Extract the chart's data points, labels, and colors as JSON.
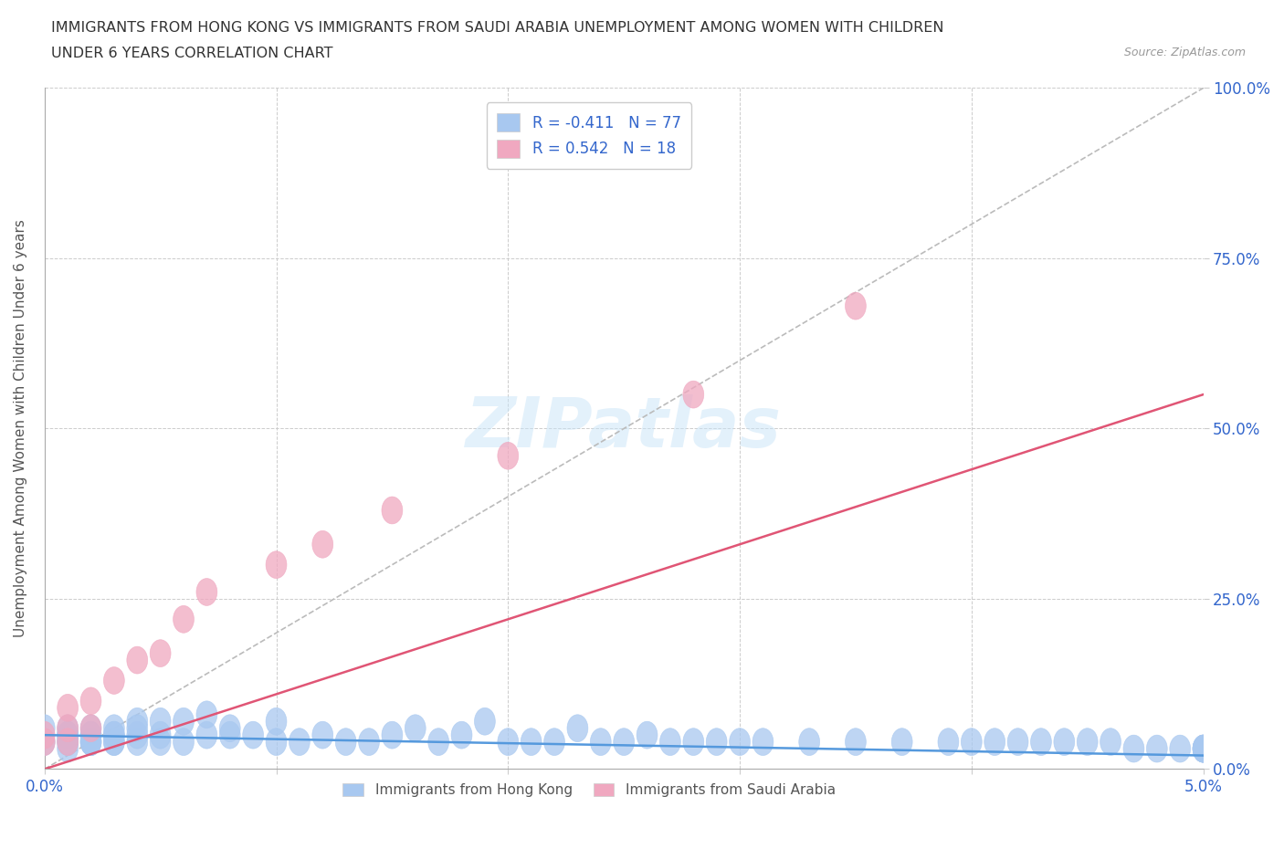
{
  "title_line1": "IMMIGRANTS FROM HONG KONG VS IMMIGRANTS FROM SAUDI ARABIA UNEMPLOYMENT AMONG WOMEN WITH CHILDREN",
  "title_line2": "UNDER 6 YEARS CORRELATION CHART",
  "source_text": "Source: ZipAtlas.com",
  "ylabel": "Unemployment Among Women with Children Under 6 years",
  "watermark": "ZIPatlas",
  "legend_label1": "Immigrants from Hong Kong",
  "legend_label2": "Immigrants from Saudi Arabia",
  "R1": -0.411,
  "N1": 77,
  "R2": 0.542,
  "N2": 18,
  "color1": "#a8c8f0",
  "color2": "#f0a8c0",
  "trendline1_color": "#5599dd",
  "trendline2_color": "#e05575",
  "dashed_line_color": "#bbbbbb",
  "xmin": 0.0,
  "xmax": 0.05,
  "ymin": 0.0,
  "ymax": 1.0,
  "x_ticks": [
    0.0,
    0.01,
    0.02,
    0.03,
    0.04,
    0.05
  ],
  "x_tick_labels": [
    "0.0%",
    "",
    "",
    "",
    "",
    "5.0%"
  ],
  "y_ticks": [
    0.0,
    0.25,
    0.5,
    0.75,
    1.0
  ],
  "y_tick_labels_right": [
    "0.0%",
    "25.0%",
    "50.0%",
    "75.0%",
    "100.0%"
  ],
  "hk_x": [
    0.0,
    0.0,
    0.001,
    0.001,
    0.001,
    0.001,
    0.001,
    0.001,
    0.001,
    0.002,
    0.002,
    0.002,
    0.002,
    0.002,
    0.002,
    0.003,
    0.003,
    0.003,
    0.003,
    0.003,
    0.004,
    0.004,
    0.004,
    0.004,
    0.005,
    0.005,
    0.005,
    0.006,
    0.006,
    0.007,
    0.007,
    0.008,
    0.008,
    0.009,
    0.01,
    0.01,
    0.011,
    0.012,
    0.013,
    0.014,
    0.015,
    0.016,
    0.017,
    0.018,
    0.019,
    0.02,
    0.021,
    0.022,
    0.023,
    0.024,
    0.025,
    0.026,
    0.027,
    0.028,
    0.029,
    0.03,
    0.031,
    0.033,
    0.035,
    0.037,
    0.039,
    0.04,
    0.041,
    0.042,
    0.043,
    0.044,
    0.045,
    0.046,
    0.047,
    0.048,
    0.049,
    0.05,
    0.05,
    0.05,
    0.05,
    0.05,
    0.05
  ],
  "hk_y": [
    0.04,
    0.06,
    0.03,
    0.04,
    0.05,
    0.04,
    0.05,
    0.06,
    0.05,
    0.04,
    0.04,
    0.05,
    0.04,
    0.06,
    0.05,
    0.04,
    0.05,
    0.04,
    0.06,
    0.05,
    0.04,
    0.06,
    0.05,
    0.07,
    0.04,
    0.05,
    0.07,
    0.04,
    0.07,
    0.05,
    0.08,
    0.05,
    0.06,
    0.05,
    0.04,
    0.07,
    0.04,
    0.05,
    0.04,
    0.04,
    0.05,
    0.06,
    0.04,
    0.05,
    0.07,
    0.04,
    0.04,
    0.04,
    0.06,
    0.04,
    0.04,
    0.05,
    0.04,
    0.04,
    0.04,
    0.04,
    0.04,
    0.04,
    0.04,
    0.04,
    0.04,
    0.04,
    0.04,
    0.04,
    0.04,
    0.04,
    0.04,
    0.04,
    0.03,
    0.03,
    0.03,
    0.03,
    0.03,
    0.03,
    0.03,
    0.03,
    0.03
  ],
  "sa_x": [
    0.0,
    0.0,
    0.001,
    0.001,
    0.001,
    0.002,
    0.002,
    0.003,
    0.004,
    0.005,
    0.006,
    0.007,
    0.01,
    0.012,
    0.015,
    0.02,
    0.028,
    0.035
  ],
  "sa_y": [
    0.04,
    0.05,
    0.04,
    0.06,
    0.09,
    0.06,
    0.1,
    0.13,
    0.16,
    0.17,
    0.22,
    0.26,
    0.3,
    0.33,
    0.38,
    0.46,
    0.55,
    0.68
  ],
  "sa_trendline_x0": 0.0,
  "sa_trendline_x1": 0.05,
  "sa_trendline_y0": 0.0,
  "sa_trendline_y1": 0.55,
  "hk_trendline_x0": 0.0,
  "hk_trendline_x1": 0.05,
  "hk_trendline_y0": 0.05,
  "hk_trendline_y1": 0.02
}
